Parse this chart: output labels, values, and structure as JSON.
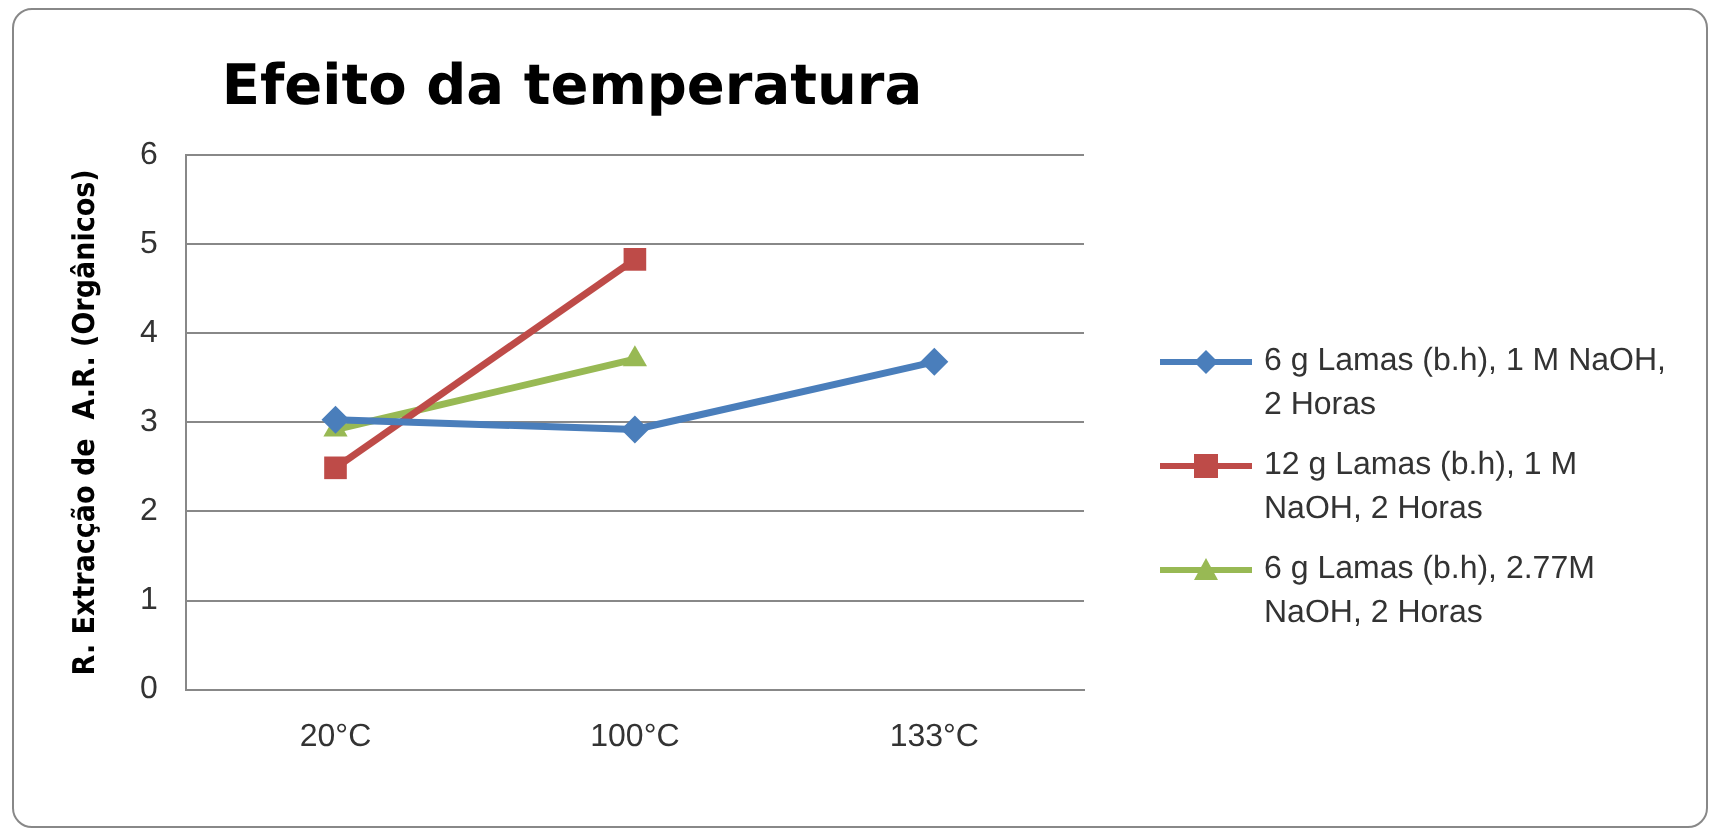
{
  "chart_data": {
    "type": "line",
    "title": "Efeito da temperatura",
    "ylabel": "R. Extracção de  A.R. (Orgânicos)",
    "categories": [
      "20°C",
      "100°C",
      "133°C"
    ],
    "series": [
      {
        "name": "6 g Lamas (b.h), 1 M NaOH, 2 Horas",
        "color": "#4a7ebb",
        "marker": "diamond",
        "values": [
          3.03,
          2.92,
          3.68
        ]
      },
      {
        "name": "12 g Lamas (b.h), 1 M NaOH, 2 Horas",
        "color": "#be4b48",
        "marker": "square",
        "values": [
          2.49,
          4.83,
          null
        ]
      },
      {
        "name": "6 g Lamas (b.h), 2.77M NaOH, 2 Horas",
        "color": "#98b954",
        "marker": "triangle",
        "values": [
          2.92,
          3.71,
          null
        ]
      }
    ],
    "ylim": [
      0,
      6
    ],
    "yticks": [
      0,
      1,
      2,
      3,
      4,
      5,
      6
    ],
    "grid": "y",
    "legend": "right"
  }
}
